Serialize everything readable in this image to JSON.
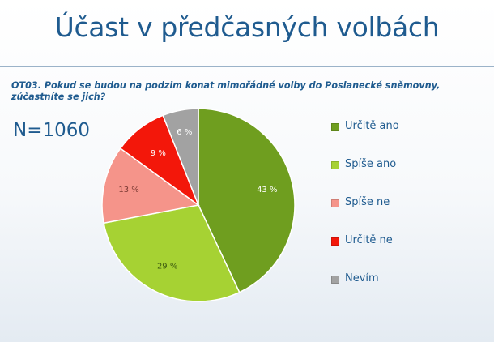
{
  "slide": {
    "title": "Účast v předčasných volbách",
    "question": "OT03. Pokud se budou na podzim konat mimořádné volby do Poslanecké sněmovny, zúčastníte se jich?",
    "n_label": "N=1060"
  },
  "chart_data": {
    "type": "pie",
    "title": "",
    "categories": [
      "Určitě ano",
      "Spíše ano",
      "Spíše ne",
      "Určitě ne",
      "Nevím"
    ],
    "values": [
      43,
      29,
      13,
      9,
      6
    ],
    "value_labels": [
      "43 %",
      "29 %",
      "13 %",
      "9 %",
      "6 %"
    ],
    "colors": [
      "#6f9e1f",
      "#a6d233",
      "#f5948a",
      "#f3170a",
      "#a2a2a2"
    ],
    "label_colors": [
      "#ffffff",
      "#3d5a10",
      "#7a3a34",
      "#ffffff",
      "#ffffff"
    ],
    "legend_position": "right"
  }
}
